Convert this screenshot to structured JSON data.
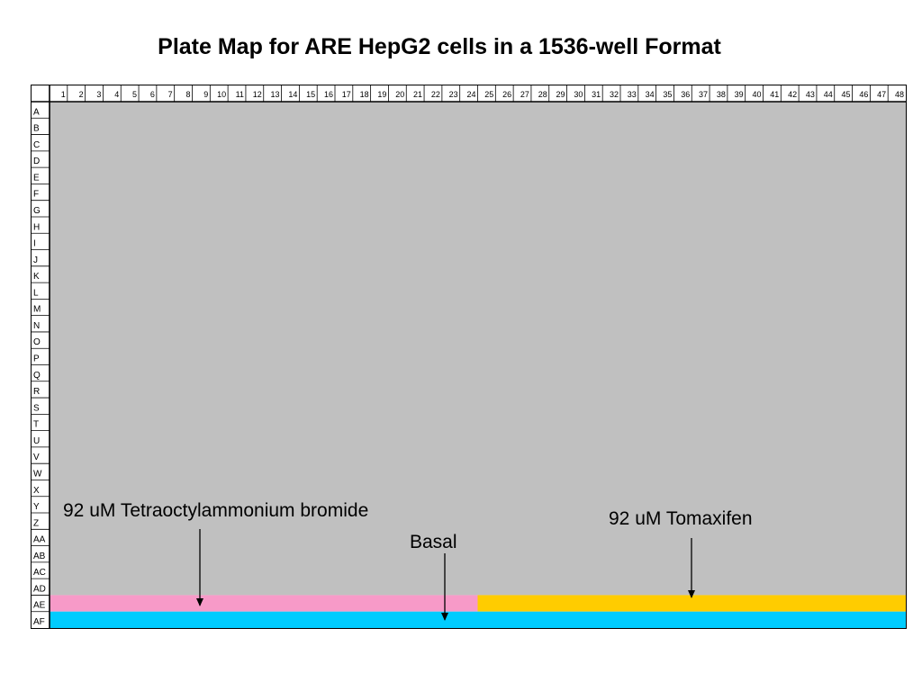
{
  "title": "Plate Map for ARE HepG2 cells in a 1536-well Format",
  "columns": [
    "1",
    "2",
    "3",
    "4",
    "5",
    "6",
    "7",
    "8",
    "9",
    "10",
    "11",
    "12",
    "13",
    "14",
    "15",
    "16",
    "17",
    "18",
    "19",
    "20",
    "21",
    "22",
    "23",
    "24",
    "25",
    "26",
    "27",
    "28",
    "29",
    "30",
    "31",
    "32",
    "33",
    "34",
    "35",
    "36",
    "37",
    "38",
    "39",
    "40",
    "41",
    "42",
    "43",
    "44",
    "45",
    "46",
    "47",
    "48"
  ],
  "rows": [
    "A",
    "B",
    "C",
    "D",
    "E",
    "F",
    "G",
    "H",
    "I",
    "J",
    "K",
    "L",
    "M",
    "N",
    "O",
    "P",
    "Q",
    "R",
    "S",
    "T",
    "U",
    "V",
    "W",
    "X",
    "Y",
    "Z",
    "AA",
    "AB",
    "AC",
    "AD",
    "AE",
    "AF"
  ],
  "regions": [
    {
      "rows": [
        "A",
        "AD"
      ],
      "cols": [
        1,
        48
      ],
      "color": "#c0c0c0"
    },
    {
      "rows": [
        "AE",
        "AE"
      ],
      "cols": [
        1,
        24
      ],
      "color": "#f79ac8"
    },
    {
      "rows": [
        "AE",
        "AE"
      ],
      "cols": [
        25,
        48
      ],
      "color": "#ffcc00"
    },
    {
      "rows": [
        "AF",
        "AF"
      ],
      "cols": [
        1,
        48
      ],
      "color": "#00ccff"
    }
  ],
  "callouts": {
    "tetraoctyl": "92 uM Tetraoctylammonium bromide",
    "basal": "Basal",
    "tomaxifen": "92 uM Tomaxifen"
  }
}
